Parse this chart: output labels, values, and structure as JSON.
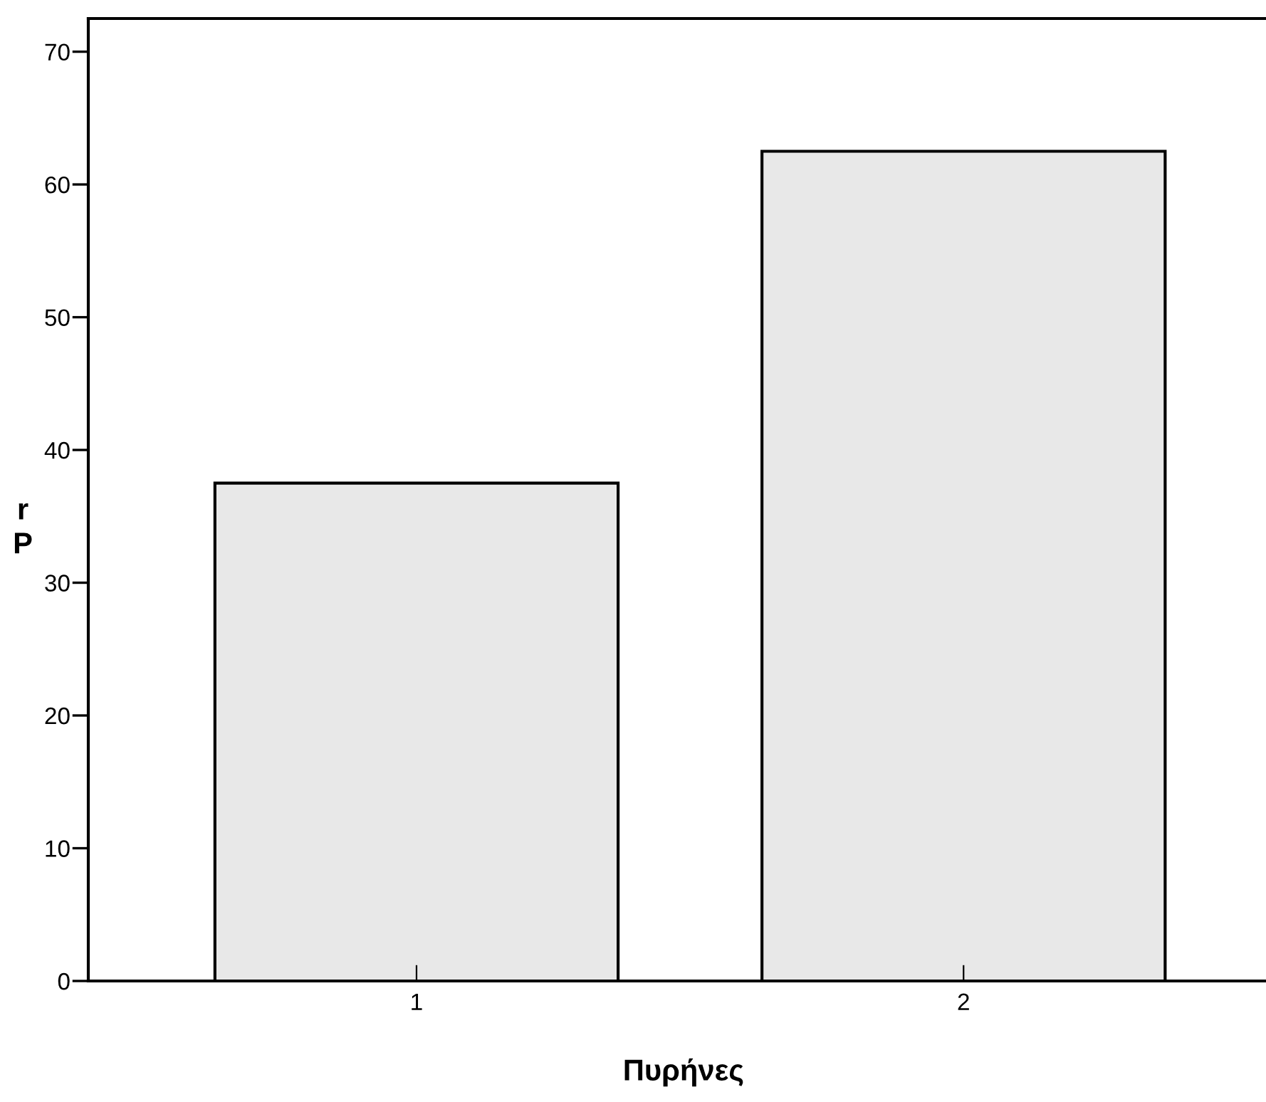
{
  "chart_data": {
    "type": "bar",
    "xlabel": "Πυρήνες",
    "ylabel": "r\nP",
    "categories": [
      "1",
      "2"
    ],
    "values": [
      37.5,
      62.5
    ],
    "color": "#e8e8e8",
    "ylim": [
      0,
      72.5
    ],
    "yticks": [
      0,
      10,
      20,
      30,
      40,
      50,
      60,
      70
    ],
    "grid": false
  }
}
